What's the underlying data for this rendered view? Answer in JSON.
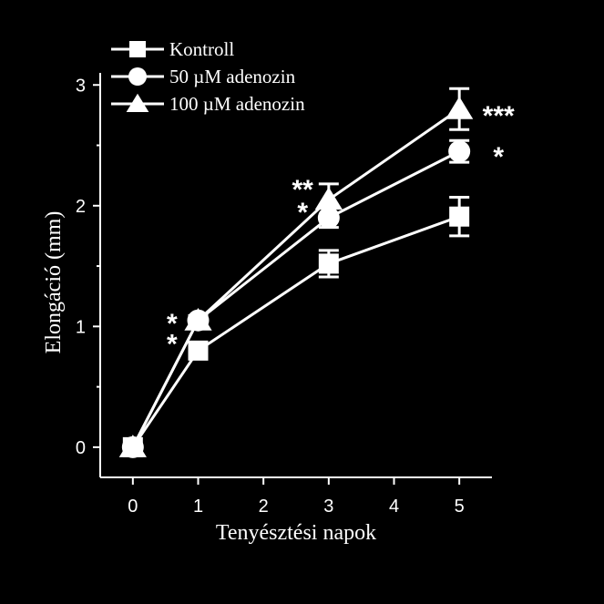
{
  "chart_data": {
    "type": "line",
    "xlabel": "Tenyésztési napok",
    "ylabel": "Elongáció (mm)",
    "xlim": [
      -0.5,
      5.5
    ],
    "ylim": [
      -0.25,
      3.1
    ],
    "x_ticks": [
      0,
      1,
      2,
      3,
      4,
      5
    ],
    "x_tick_labels": [
      "0",
      "1",
      "2",
      "3",
      "4",
      "5"
    ],
    "y_ticks": [
      0,
      1,
      2,
      3
    ],
    "y_tick_labels": [
      "0",
      "1",
      "2",
      "3"
    ],
    "y_minor_ticks": [
      0.5,
      1.5,
      2.5
    ],
    "legend_position": "top-left",
    "colors": {
      "background": "#000000",
      "foreground": "#ffffff"
    },
    "series": [
      {
        "name": "Kontroll",
        "marker": "square",
        "x": [
          0,
          1,
          3,
          5
        ],
        "y": [
          0,
          0.8,
          1.52,
          1.91
        ],
        "err": [
          0,
          0.03,
          0.11,
          0.16
        ]
      },
      {
        "name": "50 µM adenozin",
        "marker": "circle",
        "x": [
          0,
          1,
          3,
          5
        ],
        "y": [
          0,
          1.05,
          1.9,
          2.45
        ],
        "err": [
          0,
          0.04,
          0.08,
          0.09
        ]
      },
      {
        "name": "100 µM adenozin",
        "marker": "triangle",
        "x": [
          0,
          1,
          3,
          5
        ],
        "y": [
          0,
          1.05,
          2.05,
          2.8
        ],
        "err": [
          0,
          0.03,
          0.13,
          0.17
        ]
      }
    ],
    "annotations": [
      {
        "text": "*",
        "x": 0.6,
        "y": 1.04
      },
      {
        "text": "*",
        "x": 0.6,
        "y": 0.87
      },
      {
        "text": "**",
        "x": 2.6,
        "y": 2.15
      },
      {
        "text": "*",
        "x": 2.6,
        "y": 1.96
      },
      {
        "text": "***",
        "x": 5.6,
        "y": 2.76
      },
      {
        "text": "*",
        "x": 5.6,
        "y": 2.42
      }
    ]
  }
}
